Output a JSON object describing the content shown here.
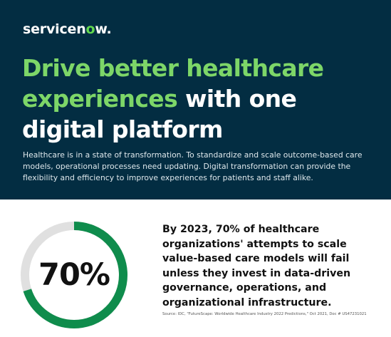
{
  "logo": {
    "text_before": "servicen",
    "text_o": "o",
    "text_after": "w",
    "mark": "."
  },
  "headline": {
    "line1": "Drive better healthcare",
    "line2_highlight": "experiences",
    "line2_rest": " with one",
    "line3": "digital platform"
  },
  "intro": "Healthcare is in a state of transformation. To standardize and scale outcome-based care models, operational processes need updating. Digital transformation can provide the flexibility and efficiency to improve experiences for patients and staff alike.",
  "stat": {
    "value": "70%",
    "fraction": 0.7,
    "text": "By 2023, 70% of healthcare organizations' attempts to scale value-based care models will fail unless they invest in data-driven governance, operations, and organizational infrastructure.",
    "ring_color": "#0f8c4c",
    "track_color": "#e0e0e0"
  },
  "source": "Source: IDC, \"FutureScape: Worldwide Healthcare Industry 2022 Predictions,\" Oct 2021, Doc # US47231021",
  "colors": {
    "hero_bg": "#032d42",
    "accent_green": "#7dd668"
  }
}
